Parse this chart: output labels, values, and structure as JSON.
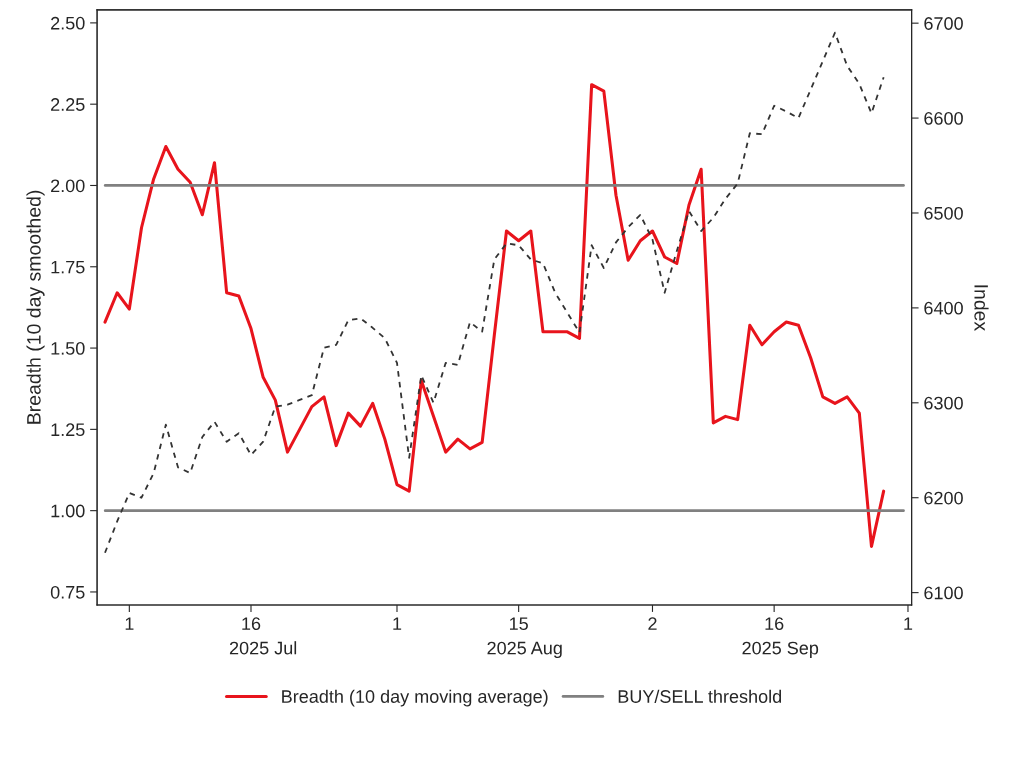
{
  "chart_data": {
    "type": "line",
    "ylabel": "Breadth (10 day smoothed)",
    "y2label": "Index",
    "categories": [
      null,
      null,
      "1",
      null,
      null,
      null,
      null,
      null,
      null,
      null,
      null,
      null,
      "16",
      null,
      null,
      null,
      null,
      null,
      null,
      null,
      null,
      null,
      null,
      null,
      "1",
      null,
      null,
      null,
      null,
      null,
      null,
      null,
      null,
      null,
      "15",
      null,
      null,
      null,
      null,
      null,
      null,
      null,
      null,
      null,
      null,
      "2",
      null,
      null,
      null,
      null,
      null,
      null,
      null,
      null,
      null,
      "16",
      null,
      null,
      null,
      null,
      null,
      null,
      null,
      null,
      null,
      null,
      "1"
    ],
    "series": [
      {
        "name": "Breadth (10 day moving average)",
        "color": "#e8141c",
        "line_style": "solid",
        "values": [
          1.58,
          1.67,
          1.62,
          1.87,
          2.02,
          2.12,
          2.05,
          2.01,
          1.91,
          2.07,
          1.67,
          1.66,
          1.56,
          1.41,
          1.34,
          1.18,
          1.25,
          1.32,
          1.35,
          1.2,
          1.3,
          1.26,
          1.33,
          1.22,
          1.08,
          1.06,
          1.4,
          1.29,
          1.18,
          1.22,
          1.19,
          1.21,
          1.54,
          1.86,
          1.83,
          1.86,
          1.55,
          1.55,
          1.55,
          1.53,
          2.31,
          2.29,
          1.97,
          1.77,
          1.83,
          1.86,
          1.78,
          1.76,
          1.94,
          2.05,
          1.27,
          1.29,
          1.28,
          1.57,
          1.51,
          1.55,
          1.58,
          1.57,
          1.47,
          1.35,
          1.33,
          1.35,
          1.3,
          0.89,
          1.06,
          null,
          null
        ]
      },
      {
        "color": "#333333",
        "axis": "y2",
        "line_style": "dashed",
        "values": [
          6142,
          6175,
          6205,
          6200,
          6226,
          6277,
          6232,
          6226,
          6264,
          6280,
          6259,
          6268,
          6245,
          6259,
          6296,
          6298,
          6303,
          6308,
          6358,
          6361,
          6387,
          6389,
          6379,
          6368,
          6342,
          6242,
          6329,
          6300,
          6342,
          6340,
          6385,
          6375,
          6451,
          6468,
          6466,
          6451,
          6447,
          6416,
          6395,
          6374,
          6466,
          6442,
          6469,
          6485,
          6498,
          6472,
          6416,
          6460,
          6502,
          6481,
          6495,
          6515,
          6531,
          6584,
          6583,
          6613,
          6607,
          6600,
          6630,
          6660,
          6690,
          6655,
          6636,
          6605,
          6643,
          null,
          null
        ]
      }
    ],
    "ylim": [
      0.71,
      2.54
    ],
    "yticks": [
      {
        "value": 0.75,
        "label": "0.75"
      },
      {
        "value": 1.0,
        "label": "1.00"
      },
      {
        "value": 1.25,
        "label": "1.25"
      },
      {
        "value": 1.5,
        "label": "1.50"
      },
      {
        "value": 1.75,
        "label": "1.75"
      },
      {
        "value": 2.0,
        "label": "2.00"
      },
      {
        "value": 2.25,
        "label": "2.25"
      },
      {
        "value": 2.5,
        "label": "2.50"
      }
    ],
    "y2lim": [
      6087,
      6714
    ],
    "y2ticks": [
      6100,
      6200,
      6300,
      6400,
      6500,
      6600,
      6700
    ],
    "ref_lines": [
      {
        "axis": "y",
        "value": 2.0,
        "label": "BUY/SELL threshold",
        "color": "#808080"
      },
      {
        "axis": "y",
        "value": 1.0,
        "color": "#808080"
      }
    ],
    "annotations": [
      "2025 Jul",
      "2025 Aug",
      "2025 Sep"
    ],
    "legend": "bottom",
    "grid": false
  }
}
